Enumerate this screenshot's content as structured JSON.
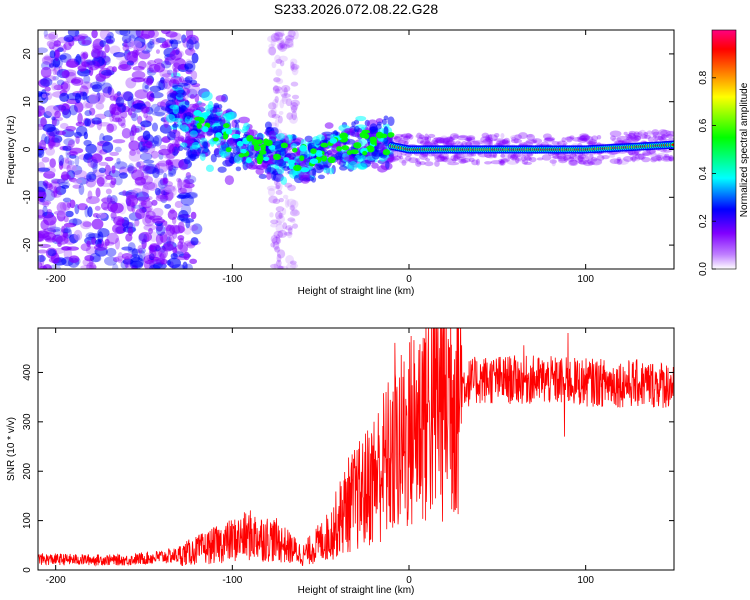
{
  "title": "S233.2026.072.08.22.G28",
  "chart_data": [
    {
      "type": "heatmap",
      "xlabel": "Height of straight line (km)",
      "ylabel": "Frequency (Hz)",
      "xlim": [
        -210,
        150
      ],
      "ylim": [
        -25,
        25
      ],
      "xticks": [
        -200,
        -100,
        0,
        100
      ],
      "yticks": [
        -20,
        -10,
        0,
        10,
        20
      ],
      "colorbar": {
        "label": "Normalized spectral amplitude",
        "range": [
          0,
          1
        ],
        "ticks": [
          "0.0",
          "0.2",
          "0.4",
          "0.6",
          "0.8"
        ],
        "colors": [
          "#ffffff",
          "#c080ff",
          "#8000ff",
          "#0000ff",
          "#00ffff",
          "#00ff00",
          "#ffff00",
          "#ff8000",
          "#ff0000",
          "#ff0080"
        ]
      },
      "ridge": [
        {
          "x": -130,
          "y": 8
        },
        {
          "x": -110,
          "y": 4
        },
        {
          "x": -90,
          "y": 0
        },
        {
          "x": -75,
          "y": -1
        },
        {
          "x": -60,
          "y": -2
        },
        {
          "x": -45,
          "y": 0
        },
        {
          "x": -20,
          "y": 1.5
        },
        {
          "x": 0,
          "y": 0
        },
        {
          "x": 50,
          "y": 0
        },
        {
          "x": 100,
          "y": 0
        },
        {
          "x": 150,
          "y": 1
        }
      ]
    },
    {
      "type": "line",
      "xlabel": "Height of straight line (km)",
      "ylabel": "SNR (10 * v/v)",
      "xlim": [
        -210,
        150
      ],
      "ylim": [
        0,
        490
      ],
      "xticks": [
        -200,
        -100,
        0,
        100
      ],
      "yticks": [
        0,
        100,
        200,
        300,
        400
      ],
      "series": [
        {
          "name": "SNR",
          "color": "#ff0000",
          "envelope": [
            {
              "x": -210,
              "y": 22
            },
            {
              "x": -160,
              "y": 20
            },
            {
              "x": -130,
              "y": 30
            },
            {
              "x": -110,
              "y": 50
            },
            {
              "x": -90,
              "y": 70
            },
            {
              "x": -75,
              "y": 60
            },
            {
              "x": -60,
              "y": 30
            },
            {
              "x": -45,
              "y": 70
            },
            {
              "x": -35,
              "y": 130
            },
            {
              "x": -25,
              "y": 160
            },
            {
              "x": -15,
              "y": 210
            },
            {
              "x": -5,
              "y": 250
            },
            {
              "x": 5,
              "y": 300
            },
            {
              "x": 15,
              "y": 340
            },
            {
              "x": 25,
              "y": 370
            },
            {
              "x": 40,
              "y": 385
            },
            {
              "x": 70,
              "y": 385
            },
            {
              "x": 100,
              "y": 380
            },
            {
              "x": 150,
              "y": 375
            }
          ],
          "spikes": [
            {
              "x": -8,
              "y": 460
            },
            {
              "x": -8.5,
              "y": 100
            },
            {
              "x": 90,
              "y": 480
            },
            {
              "x": 88,
              "y": 270
            },
            {
              "x": 65,
              "y": 455
            },
            {
              "x": 8,
              "y": 470
            },
            {
              "x": -60,
              "y": 20
            }
          ]
        }
      ]
    }
  ]
}
